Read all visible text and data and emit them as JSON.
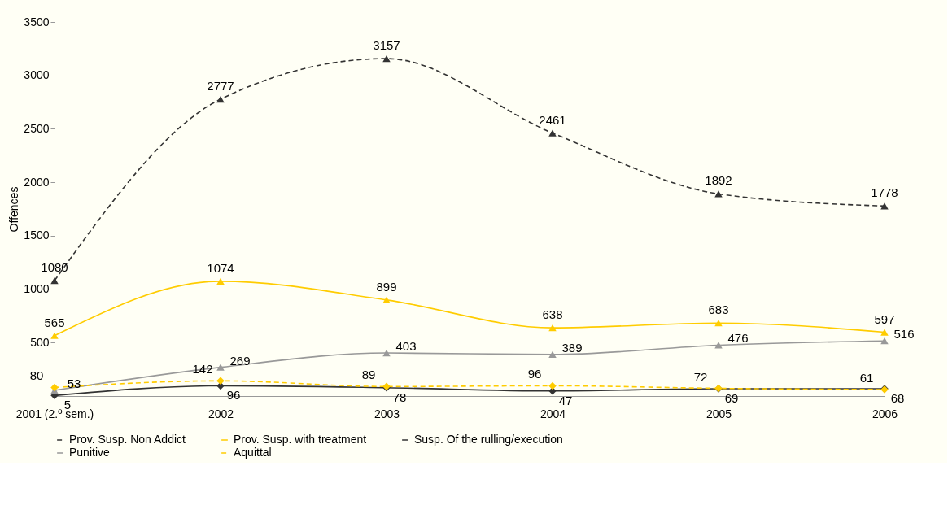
{
  "chart_data": {
    "type": "line",
    "ylabel": "Offences",
    "categories": [
      "2001 (2.º sem.)",
      "2002",
      "2003",
      "2004",
      "2005",
      "2006"
    ],
    "ylim": [
      0,
      3500
    ],
    "yticks": [
      500,
      1000,
      1500,
      2000,
      2500,
      3000,
      3500
    ],
    "grid": false,
    "legend": "bottom",
    "data_labels": true,
    "series": [
      {
        "name": "Prov. Susp. Non Addict",
        "color": "#333333",
        "marker": "triangle",
        "line_style": "dashed",
        "values": [
          1080,
          2777,
          3157,
          2461,
          1892,
          1778
        ]
      },
      {
        "name": "Prov. Susp. with treatment",
        "color": "#ffcc00",
        "marker": "triangle",
        "line_style": "solid",
        "values": [
          565,
          1074,
          899,
          638,
          683,
          597
        ]
      },
      {
        "name": "Susp. Of the rulling/execution",
        "color": "#333333",
        "marker": "diamond",
        "line_style": "solid",
        "values": [
          5,
          96,
          78,
          47,
          69,
          68
        ]
      },
      {
        "name": "Punitive",
        "color": "#999999",
        "marker": "triangle",
        "line_style": "solid",
        "values": [
          53,
          269,
          403,
          389,
          476,
          516
        ]
      },
      {
        "name": "Aquittal",
        "color": "#ffcc00",
        "marker": "diamond",
        "line_style": "dashed",
        "values": [
          80,
          142,
          89,
          96,
          72,
          61
        ]
      }
    ]
  }
}
